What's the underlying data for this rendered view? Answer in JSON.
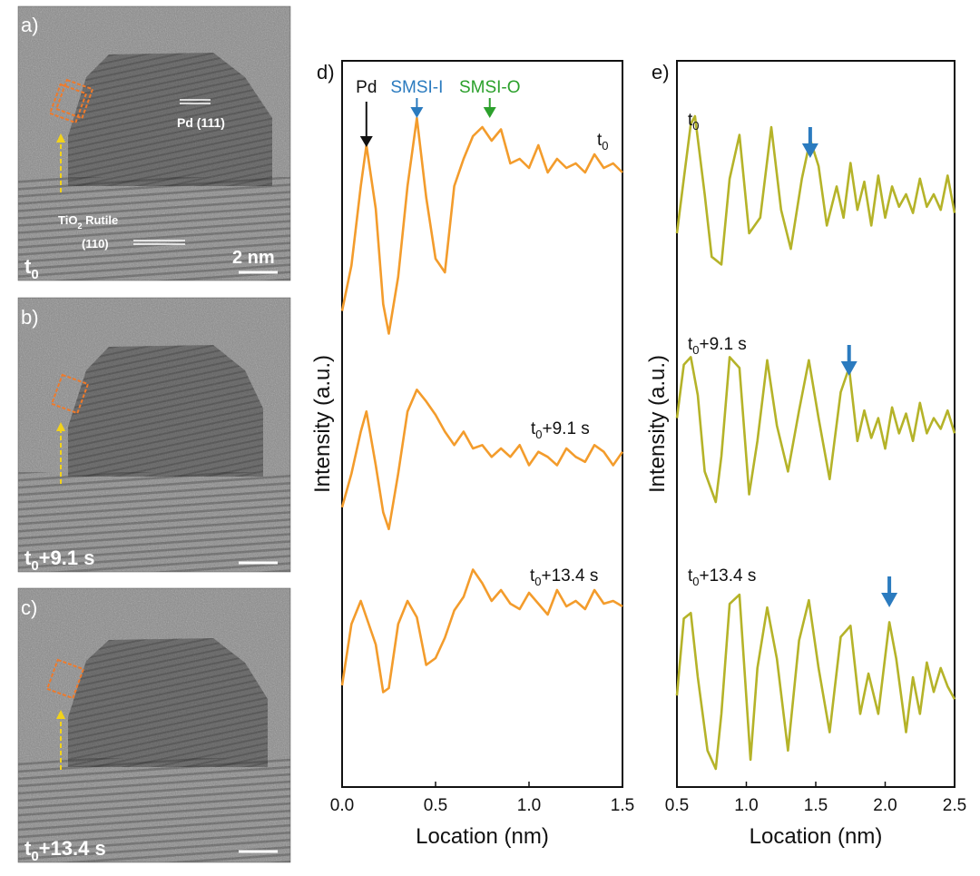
{
  "tem_panels": [
    {
      "letter": "a)",
      "label_main": "t",
      "label_sub": "0",
      "label_rest": "",
      "scale_text": "2 nm",
      "annot_pd_main": "Pd (111)",
      "annot_tio2_a": "TiO",
      "annot_tio2_sub": "2",
      "annot_tio2_b": " Rutile",
      "annot_tio2_c": "(110)"
    },
    {
      "letter": "b)",
      "label_main": "t",
      "label_sub": "0",
      "label_rest": "+9.1 s"
    },
    {
      "letter": "c)",
      "label_main": "t",
      "label_sub": "0",
      "label_rest": "+13.4 s"
    }
  ],
  "chart_data": [
    {
      "panel": "d)",
      "type": "line",
      "xlabel": "Location (nm)",
      "ylabel": "Intensity (a.u.)",
      "xlim": [
        0.0,
        1.5
      ],
      "xticks": [
        "0.0",
        "0.5",
        "1.0",
        "1.5"
      ],
      "line_color": "#f39c2c",
      "markers": [
        {
          "label": "Pd",
          "x": 0.13,
          "color": "#111111"
        },
        {
          "label": "SMSI-I",
          "x": 0.4,
          "color": "#2b7bbf"
        },
        {
          "label": "SMSI-O",
          "x": 0.79,
          "color": "#2ca02c"
        }
      ],
      "series": [
        {
          "label_main": "t",
          "label_sub": "0",
          "label_rest": "",
          "x": [
            0.0,
            0.05,
            0.1,
            0.13,
            0.18,
            0.22,
            0.25,
            0.3,
            0.35,
            0.4,
            0.45,
            0.5,
            0.55,
            0.6,
            0.65,
            0.7,
            0.75,
            0.8,
            0.85,
            0.9,
            0.95,
            1.0,
            1.05,
            1.1,
            1.15,
            1.2,
            1.25,
            1.3,
            1.35,
            1.4,
            1.45,
            1.5
          ],
          "y": [
            0.15,
            0.35,
            0.7,
            0.88,
            0.6,
            0.18,
            0.05,
            0.3,
            0.7,
            1.0,
            0.65,
            0.38,
            0.32,
            0.7,
            0.82,
            0.92,
            0.96,
            0.9,
            0.95,
            0.8,
            0.82,
            0.78,
            0.88,
            0.76,
            0.82,
            0.78,
            0.8,
            0.76,
            0.84,
            0.78,
            0.8,
            0.76
          ]
        },
        {
          "label_main": "t",
          "label_sub": "0",
          "label_rest": "+9.1 s",
          "x": [
            0.0,
            0.05,
            0.1,
            0.13,
            0.18,
            0.22,
            0.25,
            0.3,
            0.35,
            0.4,
            0.45,
            0.5,
            0.55,
            0.6,
            0.65,
            0.7,
            0.75,
            0.8,
            0.85,
            0.9,
            0.95,
            1.0,
            1.05,
            1.1,
            1.15,
            1.2,
            1.25,
            1.3,
            1.35,
            1.4,
            1.45,
            1.5
          ],
          "y": [
            0.25,
            0.45,
            0.7,
            0.82,
            0.5,
            0.22,
            0.12,
            0.45,
            0.82,
            0.95,
            0.88,
            0.8,
            0.7,
            0.62,
            0.7,
            0.6,
            0.62,
            0.55,
            0.6,
            0.55,
            0.62,
            0.5,
            0.58,
            0.55,
            0.5,
            0.6,
            0.55,
            0.52,
            0.62,
            0.58,
            0.5,
            0.58
          ]
        },
        {
          "label_main": "t",
          "label_sub": "0",
          "label_rest": "+13.4 s",
          "x": [
            0.0,
            0.05,
            0.1,
            0.13,
            0.18,
            0.22,
            0.25,
            0.3,
            0.35,
            0.4,
            0.45,
            0.5,
            0.55,
            0.6,
            0.65,
            0.7,
            0.75,
            0.8,
            0.85,
            0.9,
            0.95,
            1.0,
            1.05,
            1.1,
            1.15,
            1.2,
            1.25,
            1.3,
            1.35,
            1.4,
            1.45,
            1.5
          ],
          "y": [
            0.1,
            0.55,
            0.72,
            0.6,
            0.4,
            0.05,
            0.08,
            0.55,
            0.72,
            0.6,
            0.25,
            0.3,
            0.45,
            0.65,
            0.75,
            0.95,
            0.85,
            0.72,
            0.8,
            0.7,
            0.66,
            0.78,
            0.7,
            0.62,
            0.8,
            0.68,
            0.72,
            0.66,
            0.8,
            0.7,
            0.72,
            0.68
          ]
        }
      ]
    },
    {
      "panel": "e)",
      "type": "line",
      "xlabel": "Location (nm)",
      "ylabel": "Intensity (a.u.)",
      "xlim": [
        0.5,
        2.5
      ],
      "xticks": [
        "0.5",
        "1.0",
        "1.5",
        "2.0",
        "2.5"
      ],
      "line_color": "#b5b329",
      "arrow_color": "#2b7bbf",
      "series": [
        {
          "label_main": "t",
          "label_sub": "0",
          "label_rest": "",
          "arrow_x": 1.46,
          "x": [
            0.5,
            0.55,
            0.6,
            0.63,
            0.7,
            0.75,
            0.82,
            0.88,
            0.95,
            1.02,
            1.1,
            1.18,
            1.25,
            1.32,
            1.4,
            1.46,
            1.52,
            1.58,
            1.65,
            1.7,
            1.75,
            1.8,
            1.85,
            1.9,
            1.95,
            2.0,
            2.05,
            2.1,
            2.15,
            2.2,
            2.25,
            2.3,
            2.35,
            2.4,
            2.45,
            2.5
          ],
          "y": [
            0.25,
            0.6,
            0.95,
            1.0,
            0.5,
            0.1,
            0.05,
            0.6,
            0.88,
            0.25,
            0.35,
            0.93,
            0.4,
            0.15,
            0.6,
            0.85,
            0.68,
            0.3,
            0.55,
            0.35,
            0.7,
            0.4,
            0.58,
            0.3,
            0.62,
            0.35,
            0.55,
            0.42,
            0.5,
            0.38,
            0.6,
            0.42,
            0.5,
            0.4,
            0.62,
            0.38
          ]
        },
        {
          "label_main": "t",
          "label_sub": "0",
          "label_rest": "+9.1 s",
          "arrow_x": 1.74,
          "x": [
            0.5,
            0.55,
            0.6,
            0.65,
            0.7,
            0.78,
            0.82,
            0.88,
            0.95,
            1.02,
            1.08,
            1.15,
            1.22,
            1.3,
            1.38,
            1.45,
            1.52,
            1.6,
            1.68,
            1.74,
            1.8,
            1.85,
            1.9,
            1.95,
            2.0,
            2.05,
            2.1,
            2.15,
            2.2,
            2.25,
            2.3,
            2.35,
            2.4,
            2.45,
            2.5
          ],
          "y": [
            0.55,
            0.9,
            0.95,
            0.7,
            0.2,
            0.0,
            0.3,
            0.95,
            0.88,
            0.05,
            0.4,
            0.93,
            0.5,
            0.2,
            0.6,
            0.93,
            0.55,
            0.15,
            0.72,
            0.88,
            0.4,
            0.6,
            0.42,
            0.55,
            0.35,
            0.62,
            0.45,
            0.58,
            0.4,
            0.65,
            0.45,
            0.55,
            0.48,
            0.6,
            0.45
          ]
        },
        {
          "label_main": "t",
          "label_sub": "0",
          "label_rest": "+13.4 s",
          "arrow_x": 2.03,
          "x": [
            0.5,
            0.55,
            0.6,
            0.65,
            0.72,
            0.78,
            0.82,
            0.88,
            0.95,
            1.03,
            1.08,
            1.15,
            1.22,
            1.3,
            1.38,
            1.45,
            1.52,
            1.6,
            1.68,
            1.75,
            1.82,
            1.88,
            1.95,
            2.03,
            2.08,
            2.15,
            2.2,
            2.25,
            2.3,
            2.35,
            2.4,
            2.45,
            2.5
          ],
          "y": [
            0.4,
            0.82,
            0.85,
            0.5,
            0.1,
            0.0,
            0.3,
            0.9,
            0.95,
            0.05,
            0.55,
            0.88,
            0.6,
            0.1,
            0.7,
            0.92,
            0.55,
            0.2,
            0.72,
            0.78,
            0.3,
            0.52,
            0.3,
            0.8,
            0.6,
            0.2,
            0.5,
            0.3,
            0.58,
            0.42,
            0.55,
            0.45,
            0.38
          ]
        }
      ]
    }
  ]
}
